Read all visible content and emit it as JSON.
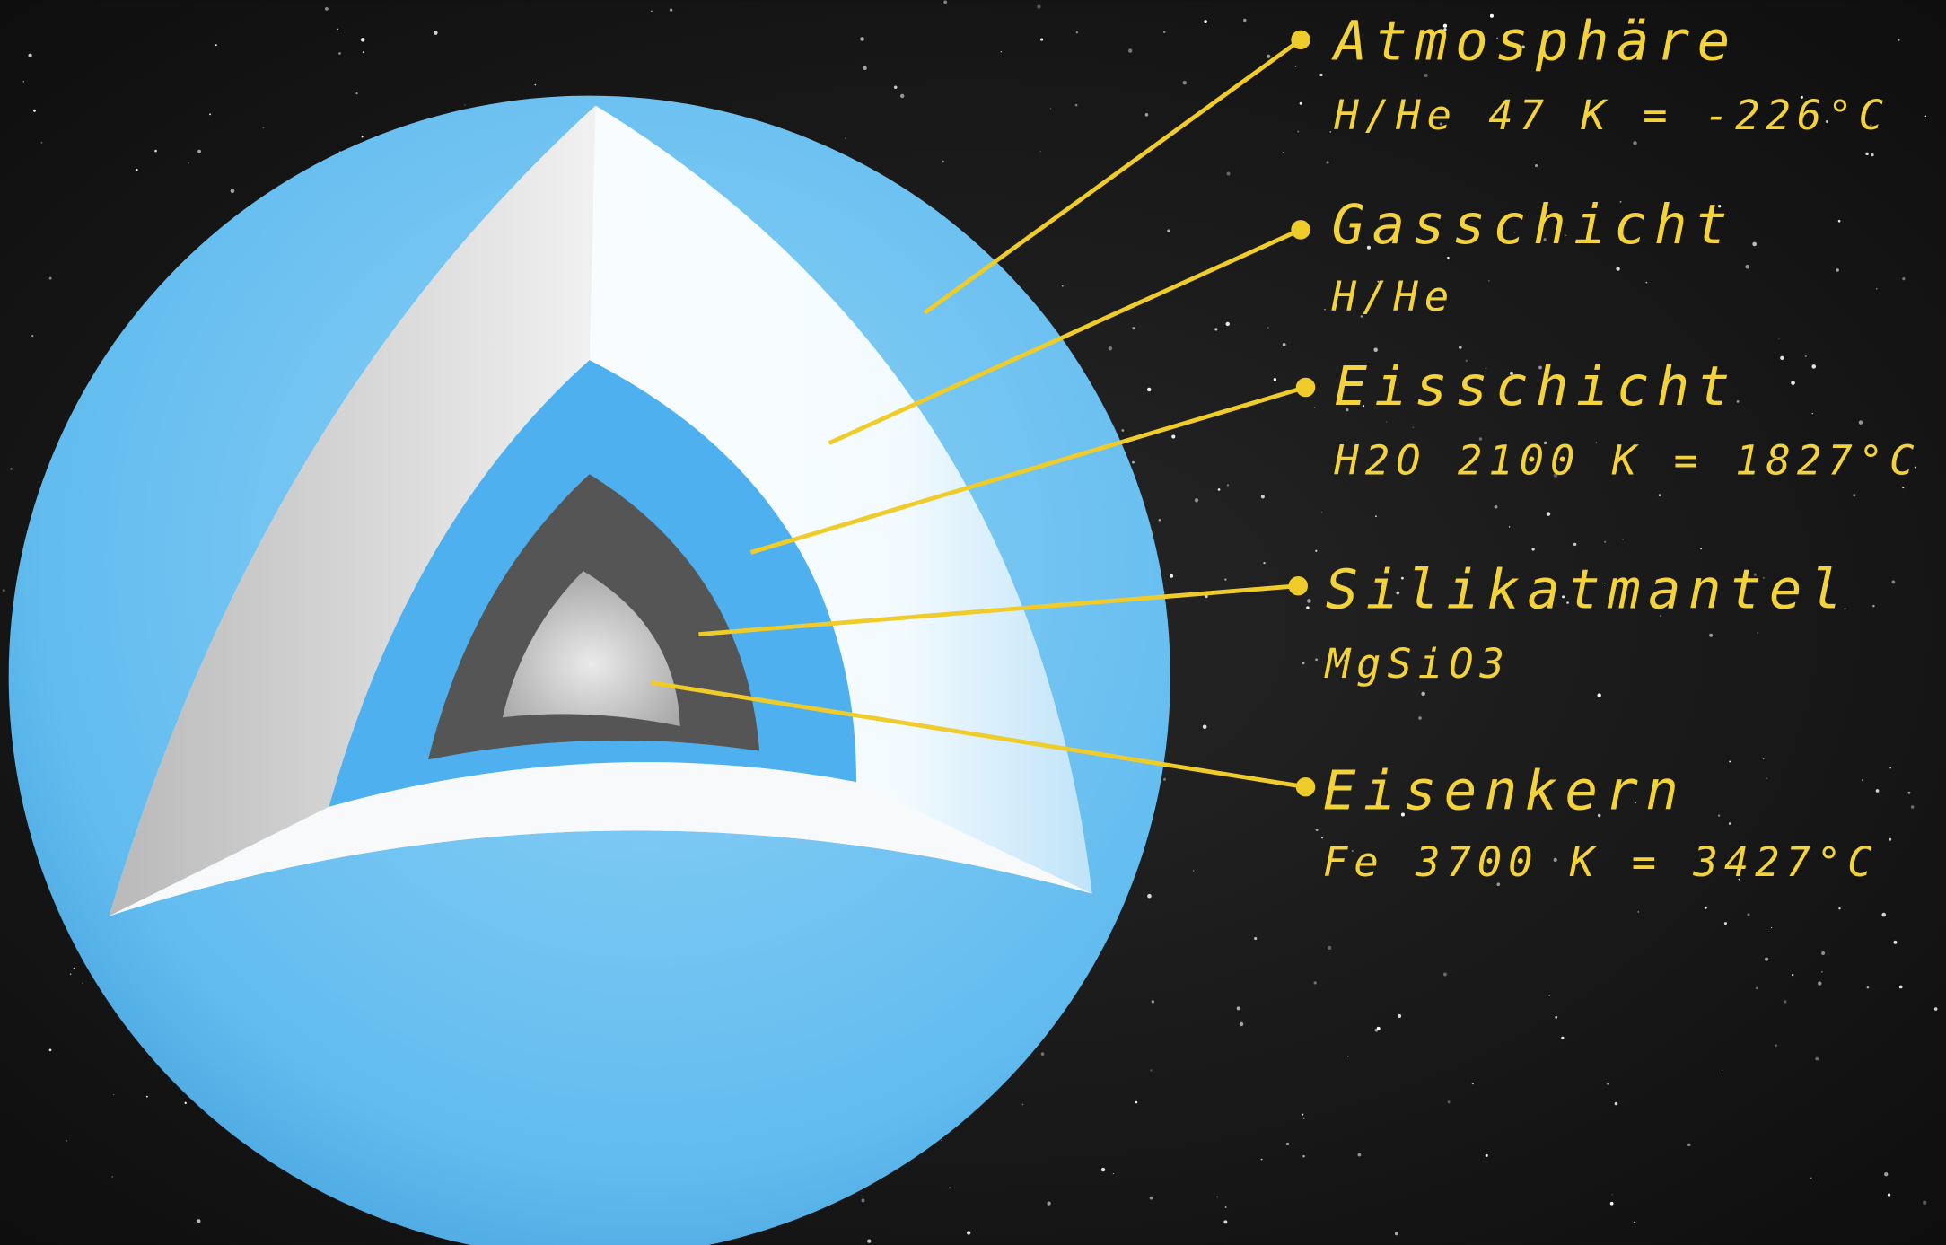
{
  "layers": [
    {
      "name": "Atmosphäre",
      "detail": "H/He 47 K = -226°C"
    },
    {
      "name": "Gasschicht",
      "detail": "H/He"
    },
    {
      "name": "Eisschicht",
      "detail": "H2O 2100 K = 1827°C"
    },
    {
      "name": "Silikatmantel",
      "detail": "MgSiO3"
    },
    {
      "name": "Eisenkern",
      "detail": "Fe 3700 K = 3427°C"
    }
  ]
}
